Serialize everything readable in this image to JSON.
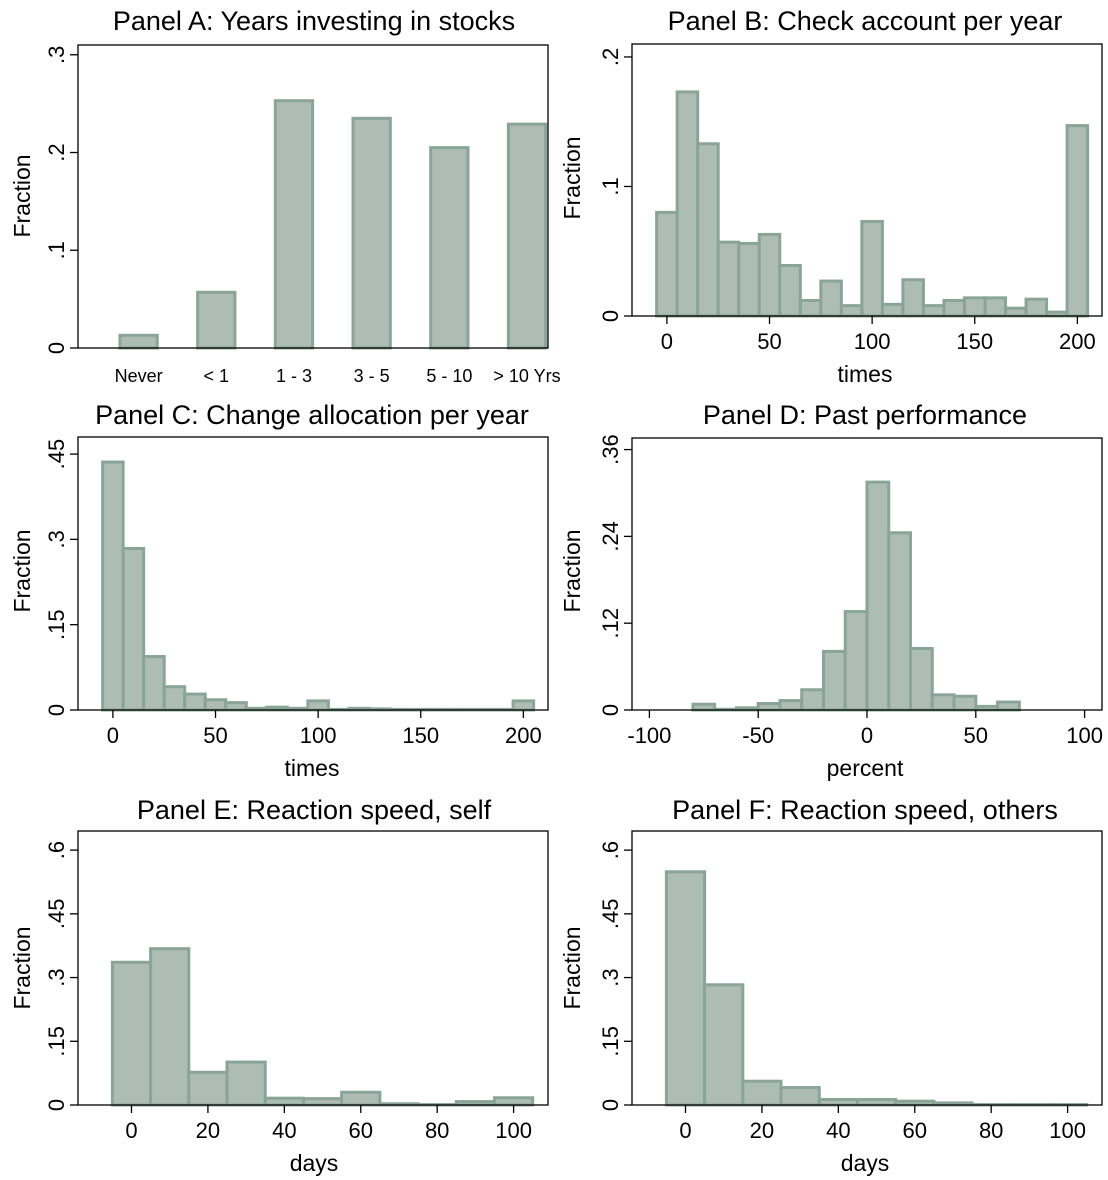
{
  "style": {
    "bar_fill": "#adbdb6",
    "bar_edge": "#8aa499"
  },
  "chart_data": [
    {
      "id": "A",
      "type": "bar",
      "title": "Panel A: Years investing in stocks",
      "xlabel": "",
      "ylabel": "Fraction",
      "categories": [
        "Never",
        "< 1",
        "1 - 3",
        "3 - 5",
        "5 - 10",
        "> 10 Yrs"
      ],
      "values": [
        0.013,
        0.057,
        0.253,
        0.235,
        0.205,
        0.229
      ],
      "ylim": [
        0,
        0.31
      ],
      "yticks": [
        {
          "v": 0,
          "label": "0"
        },
        {
          "v": 0.1,
          "label": ".1"
        },
        {
          "v": 0.2,
          "label": ".2"
        },
        {
          "v": 0.3,
          "label": ".3"
        }
      ]
    },
    {
      "id": "B",
      "type": "histogram",
      "title": "Panel B: Check account per year",
      "xlabel": "times",
      "ylabel": "Fraction",
      "bin_width": 10,
      "bin_centers": [
        0,
        10,
        20,
        30,
        40,
        50,
        60,
        70,
        80,
        90,
        100,
        110,
        120,
        130,
        140,
        150,
        160,
        170,
        180,
        190,
        200
      ],
      "values": [
        0.08,
        0.173,
        0.133,
        0.057,
        0.056,
        0.063,
        0.039,
        0.012,
        0.027,
        0.008,
        0.073,
        0.009,
        0.028,
        0.008,
        0.012,
        0.014,
        0.014,
        0.006,
        0.013,
        0.003,
        0.147
      ],
      "xlim": [
        -17,
        212
      ],
      "ylim": [
        0,
        0.21
      ],
      "xticks": [
        {
          "v": 0,
          "label": "0"
        },
        {
          "v": 50,
          "label": "50"
        },
        {
          "v": 100,
          "label": "100"
        },
        {
          "v": 150,
          "label": "150"
        },
        {
          "v": 200,
          "label": "200"
        }
      ],
      "yticks": [
        {
          "v": 0,
          "label": "0"
        },
        {
          "v": 0.1,
          "label": ".1"
        },
        {
          "v": 0.2,
          "label": ".2"
        }
      ]
    },
    {
      "id": "C",
      "type": "histogram",
      "title": "Panel C: Change allocation per year",
      "xlabel": "times",
      "ylabel": "Fraction",
      "bin_width": 10,
      "bin_centers": [
        0,
        10,
        20,
        30,
        40,
        50,
        60,
        70,
        80,
        90,
        100,
        110,
        120,
        130,
        140,
        150,
        160,
        170,
        180,
        190,
        200
      ],
      "values": [
        0.436,
        0.284,
        0.094,
        0.041,
        0.028,
        0.018,
        0.013,
        0.003,
        0.005,
        0.003,
        0.016,
        0.001,
        0.003,
        0.002,
        0.001,
        0.001,
        0.001,
        0.001,
        0.001,
        0.001,
        0.016
      ],
      "xlim": [
        -17,
        212
      ],
      "ylim": [
        0,
        0.48
      ],
      "xticks": [
        {
          "v": 0,
          "label": "0"
        },
        {
          "v": 50,
          "label": "50"
        },
        {
          "v": 100,
          "label": "100"
        },
        {
          "v": 150,
          "label": "150"
        },
        {
          "v": 200,
          "label": "200"
        }
      ],
      "yticks": [
        {
          "v": 0,
          "label": "0"
        },
        {
          "v": 0.15,
          "label": ".15"
        },
        {
          "v": 0.3,
          "label": ".3"
        },
        {
          "v": 0.45,
          "label": ".45"
        }
      ]
    },
    {
      "id": "D",
      "type": "histogram",
      "title": "Panel D: Past performance",
      "xlabel": "percent",
      "ylabel": "Fraction",
      "bin_width": 10,
      "bin_centers": [
        -75,
        -65,
        -55,
        -45,
        -35,
        -25,
        -15,
        -5,
        5,
        15,
        25,
        35,
        45,
        55,
        65
      ],
      "values": [
        0.008,
        0.001,
        0.003,
        0.009,
        0.013,
        0.028,
        0.081,
        0.136,
        0.315,
        0.245,
        0.085,
        0.021,
        0.019,
        0.005,
        0.011
      ],
      "xlim": [
        -108,
        108
      ],
      "ylim": [
        0,
        0.376
      ],
      "xticks": [
        {
          "v": -100,
          "label": "-100"
        },
        {
          "v": -50,
          "label": "-50"
        },
        {
          "v": 0,
          "label": "0"
        },
        {
          "v": 50,
          "label": "50"
        },
        {
          "v": 100,
          "label": "100"
        }
      ],
      "yticks": [
        {
          "v": 0,
          "label": "0"
        },
        {
          "v": 0.12,
          "label": ".12"
        },
        {
          "v": 0.24,
          "label": ".24"
        },
        {
          "v": 0.36,
          "label": ".36"
        }
      ]
    },
    {
      "id": "E",
      "type": "histogram",
      "title": "Panel E: Reaction speed, self",
      "xlabel": "days",
      "ylabel": "Fraction",
      "bin_width": 10,
      "bin_centers": [
        0,
        10,
        20,
        30,
        40,
        50,
        60,
        70,
        80,
        90,
        100
      ],
      "values": [
        0.336,
        0.368,
        0.077,
        0.101,
        0.016,
        0.015,
        0.03,
        0.003,
        0.001,
        0.008,
        0.017
      ],
      "xlim": [
        -14,
        109
      ],
      "ylim": [
        0,
        0.645
      ],
      "xticks": [
        {
          "v": 0,
          "label": "0"
        },
        {
          "v": 20,
          "label": "20"
        },
        {
          "v": 40,
          "label": "40"
        },
        {
          "v": 60,
          "label": "60"
        },
        {
          "v": 80,
          "label": "80"
        },
        {
          "v": 100,
          "label": "100"
        }
      ],
      "yticks": [
        {
          "v": 0,
          "label": "0"
        },
        {
          "v": 0.15,
          "label": ".15"
        },
        {
          "v": 0.3,
          "label": ".3"
        },
        {
          "v": 0.45,
          "label": ".45"
        },
        {
          "v": 0.6,
          "label": ".6"
        }
      ]
    },
    {
      "id": "F",
      "type": "histogram",
      "title": "Panel F: Reaction speed, others",
      "xlabel": "days",
      "ylabel": "Fraction",
      "bin_width": 10,
      "bin_centers": [
        0,
        10,
        20,
        30,
        40,
        50,
        60,
        70,
        80,
        90,
        100
      ],
      "values": [
        0.549,
        0.283,
        0.056,
        0.041,
        0.013,
        0.013,
        0.009,
        0.005,
        0.001,
        0.001,
        0.001
      ],
      "xlim": [
        -14,
        109
      ],
      "ylim": [
        0,
        0.645
      ],
      "xticks": [
        {
          "v": 0,
          "label": "0"
        },
        {
          "v": 20,
          "label": "20"
        },
        {
          "v": 40,
          "label": "40"
        },
        {
          "v": 60,
          "label": "60"
        },
        {
          "v": 80,
          "label": "80"
        },
        {
          "v": 100,
          "label": "100"
        }
      ],
      "yticks": [
        {
          "v": 0,
          "label": "0"
        },
        {
          "v": 0.15,
          "label": ".15"
        },
        {
          "v": 0.3,
          "label": ".3"
        },
        {
          "v": 0.45,
          "label": ".45"
        },
        {
          "v": 0.6,
          "label": ".6"
        }
      ]
    }
  ]
}
